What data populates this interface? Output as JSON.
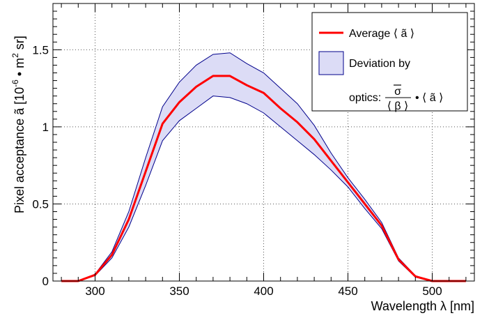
{
  "chart_data": {
    "type": "line",
    "xlabel": "Wavelength λ [nm]",
    "ylabel_main": "Pixel acceptance ã [10",
    "ylabel_exp": "-6",
    "ylabel_unit": " • m",
    "ylabel_unit_exp": "2",
    "ylabel_tail": " sr]",
    "xlim": [
      275,
      525
    ],
    "ylim": [
      0,
      1.8
    ],
    "x_ticks": [
      300,
      350,
      400,
      450,
      500
    ],
    "x_tick_labels": [
      "300",
      "350",
      "400",
      "450",
      "500"
    ],
    "y_ticks": [
      0,
      0.5,
      1,
      1.5
    ],
    "y_tick_labels": [
      "0",
      "0.5",
      "1",
      "1.5"
    ],
    "grid": true,
    "legend_position": "top-right",
    "colors": {
      "average_line": "#ff0000",
      "band_fill": "#dcdcf6",
      "band_edge": "#00008b"
    },
    "legend": {
      "average_label": "Average ⟨ ã ⟩",
      "deviation_label_line1": "Deviation by",
      "deviation_label_prefix": "optics:",
      "fraction_numerator": "σ",
      "fraction_denominator": "⟨ β ⟩",
      "fraction_suffix": "• ⟨ ã ⟩"
    },
    "series": [
      {
        "name": "Average ⟨ ã ⟩",
        "x": [
          280,
          290,
          300,
          310,
          320,
          330,
          340,
          350,
          360,
          370,
          380,
          390,
          400,
          410,
          420,
          430,
          440,
          450,
          460,
          470,
          480,
          490,
          500,
          510,
          520
        ],
        "values": [
          0.0,
          0.0,
          0.04,
          0.17,
          0.4,
          0.71,
          1.02,
          1.16,
          1.26,
          1.33,
          1.33,
          1.27,
          1.22,
          1.12,
          1.03,
          0.92,
          0.78,
          0.64,
          0.5,
          0.36,
          0.14,
          0.03,
          0.0,
          0.0,
          0.0
        ]
      },
      {
        "name": "Deviation by optics: σ/⟨ β ⟩ • ⟨ ã ⟩",
        "x": [
          280,
          290,
          300,
          310,
          320,
          330,
          340,
          350,
          360,
          370,
          380,
          390,
          400,
          410,
          420,
          430,
          440,
          450,
          460,
          470,
          480,
          490,
          500,
          510,
          520
        ],
        "upper": [
          0.0,
          0.0,
          0.045,
          0.19,
          0.45,
          0.8,
          1.13,
          1.29,
          1.4,
          1.47,
          1.48,
          1.41,
          1.35,
          1.25,
          1.15,
          1.01,
          0.83,
          0.67,
          0.53,
          0.38,
          0.15,
          0.035,
          0.0,
          0.0,
          0.0
        ],
        "lower": [
          0.0,
          0.0,
          0.035,
          0.15,
          0.35,
          0.62,
          0.91,
          1.04,
          1.12,
          1.2,
          1.19,
          1.15,
          1.09,
          1.0,
          0.91,
          0.82,
          0.72,
          0.61,
          0.47,
          0.34,
          0.13,
          0.025,
          0.0,
          0.0,
          0.0
        ]
      }
    ]
  }
}
